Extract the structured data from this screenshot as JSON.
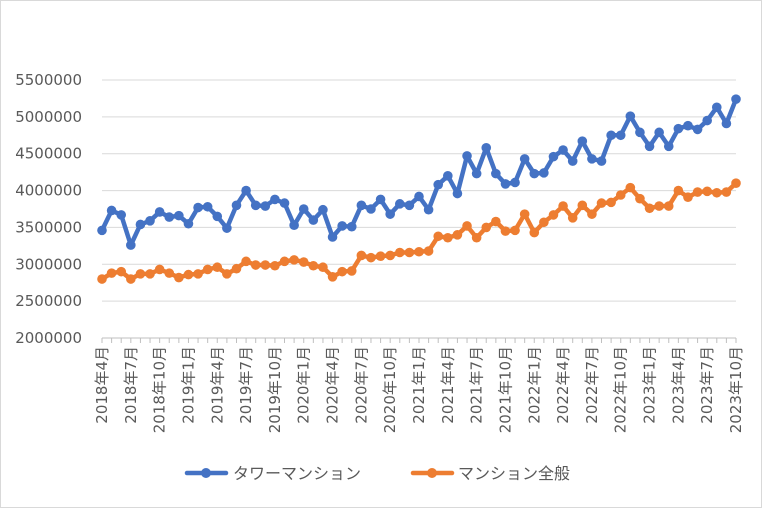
{
  "chart_data": {
    "type": "line",
    "title": "",
    "xlabel": "",
    "ylabel": "",
    "ylim": [
      2000000,
      5500000
    ],
    "yticks": [
      "5500000",
      "5000000",
      "4500000",
      "4000000",
      "3500000",
      "3000000",
      "2500000",
      "2000000"
    ],
    "xtick_labels": [
      "2018年4月",
      "2018年7月",
      "2018年10月",
      "2019年1月",
      "2019年4月",
      "2019年7月",
      "2019年10月",
      "2020年1月",
      "2020年4月",
      "2020年7月",
      "2020年10月",
      "2021年1月",
      "2021年4月",
      "2021年7月",
      "2021年10月",
      "2022年1月",
      "2022年4月",
      "2022年7月",
      "2022年10月",
      "2023年1月",
      "2023年4月",
      "2023年7月",
      "2023年10月"
    ],
    "x_start": "2018年4月",
    "x_end": "2023年10月",
    "n_points": 67,
    "legend_position": "bottom",
    "series": [
      {
        "name": "タワーマンション",
        "color": "#4472C4",
        "values": [
          3460000,
          3730000,
          3670000,
          3260000,
          3540000,
          3590000,
          3710000,
          3640000,
          3660000,
          3550000,
          3770000,
          3780000,
          3650000,
          3490000,
          3800000,
          4000000,
          3800000,
          3790000,
          3880000,
          3830000,
          3530000,
          3750000,
          3600000,
          3740000,
          3370000,
          3520000,
          3510000,
          3800000,
          3750000,
          3880000,
          3680000,
          3820000,
          3800000,
          3920000,
          3740000,
          4080000,
          4200000,
          3960000,
          4470000,
          4230000,
          4580000,
          4230000,
          4090000,
          4110000,
          4430000,
          4230000,
          4240000,
          4460000,
          4550000,
          4400000,
          4670000,
          4430000,
          4400000,
          4750000,
          4750000,
          5010000,
          4790000,
          4600000,
          4790000,
          4600000,
          4840000,
          4880000,
          4830000,
          4950000,
          5130000,
          4910000,
          5240000
        ]
      },
      {
        "name": "マンション全般",
        "color": "#ED7D31",
        "values": [
          2800000,
          2880000,
          2900000,
          2800000,
          2870000,
          2870000,
          2930000,
          2880000,
          2820000,
          2860000,
          2870000,
          2930000,
          2960000,
          2870000,
          2940000,
          3040000,
          2990000,
          2990000,
          2980000,
          3040000,
          3060000,
          3030000,
          2980000,
          2960000,
          2830000,
          2900000,
          2910000,
          3120000,
          3090000,
          3110000,
          3120000,
          3160000,
          3160000,
          3170000,
          3180000,
          3380000,
          3360000,
          3400000,
          3520000,
          3360000,
          3500000,
          3580000,
          3450000,
          3460000,
          3680000,
          3430000,
          3570000,
          3670000,
          3790000,
          3630000,
          3800000,
          3680000,
          3830000,
          3840000,
          3940000,
          4040000,
          3890000,
          3760000,
          3790000,
          3790000,
          4000000,
          3910000,
          3980000,
          3990000,
          3970000,
          3980000,
          4100000
        ]
      }
    ]
  }
}
